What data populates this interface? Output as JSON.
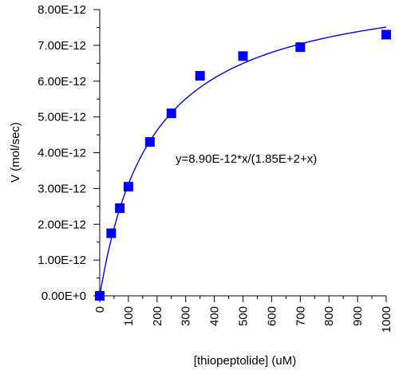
{
  "chart_data": {
    "type": "scatter",
    "xlabel": "[thiopeptolide] (uM)",
    "ylabel": "V (mol/sec)",
    "xlim": [
      0,
      1000
    ],
    "ylim": [
      0,
      8e-12
    ],
    "x_ticks": [
      0,
      100,
      200,
      300,
      400,
      500,
      600,
      700,
      800,
      900,
      1000
    ],
    "x_tick_labels": [
      "0",
      "100",
      "200",
      "300",
      "400",
      "500",
      "600",
      "700",
      "800",
      "900",
      "1000"
    ],
    "y_ticks": [
      0,
      1e-12,
      2e-12,
      3e-12,
      4e-12,
      5e-12,
      6e-12,
      7e-12,
      8e-12
    ],
    "y_tick_labels": [
      "0.00E+0",
      "1.00E-12",
      "2.00E-12",
      "3.00E-12",
      "4.00E-12",
      "5.00E-12",
      "6.00E-12",
      "7.00E-12",
      "8.00E-12"
    ],
    "grid": false,
    "series": [
      {
        "marker": "square",
        "color": "#0000ff",
        "x": [
          0,
          40,
          70,
          100,
          175,
          250,
          350,
          500,
          700,
          1000
        ],
        "y": [
          0,
          1.75e-12,
          2.45e-12,
          3.05e-12,
          4.3e-12,
          5.1e-12,
          6.15e-12,
          6.7e-12,
          6.95e-12,
          7.3e-12
        ]
      }
    ],
    "fit": {
      "color": "#0000ff",
      "vmax": 8.9e-12,
      "km": 185,
      "equation_label": "y=8.90E-12*x/(1.85E+2+x)"
    }
  }
}
